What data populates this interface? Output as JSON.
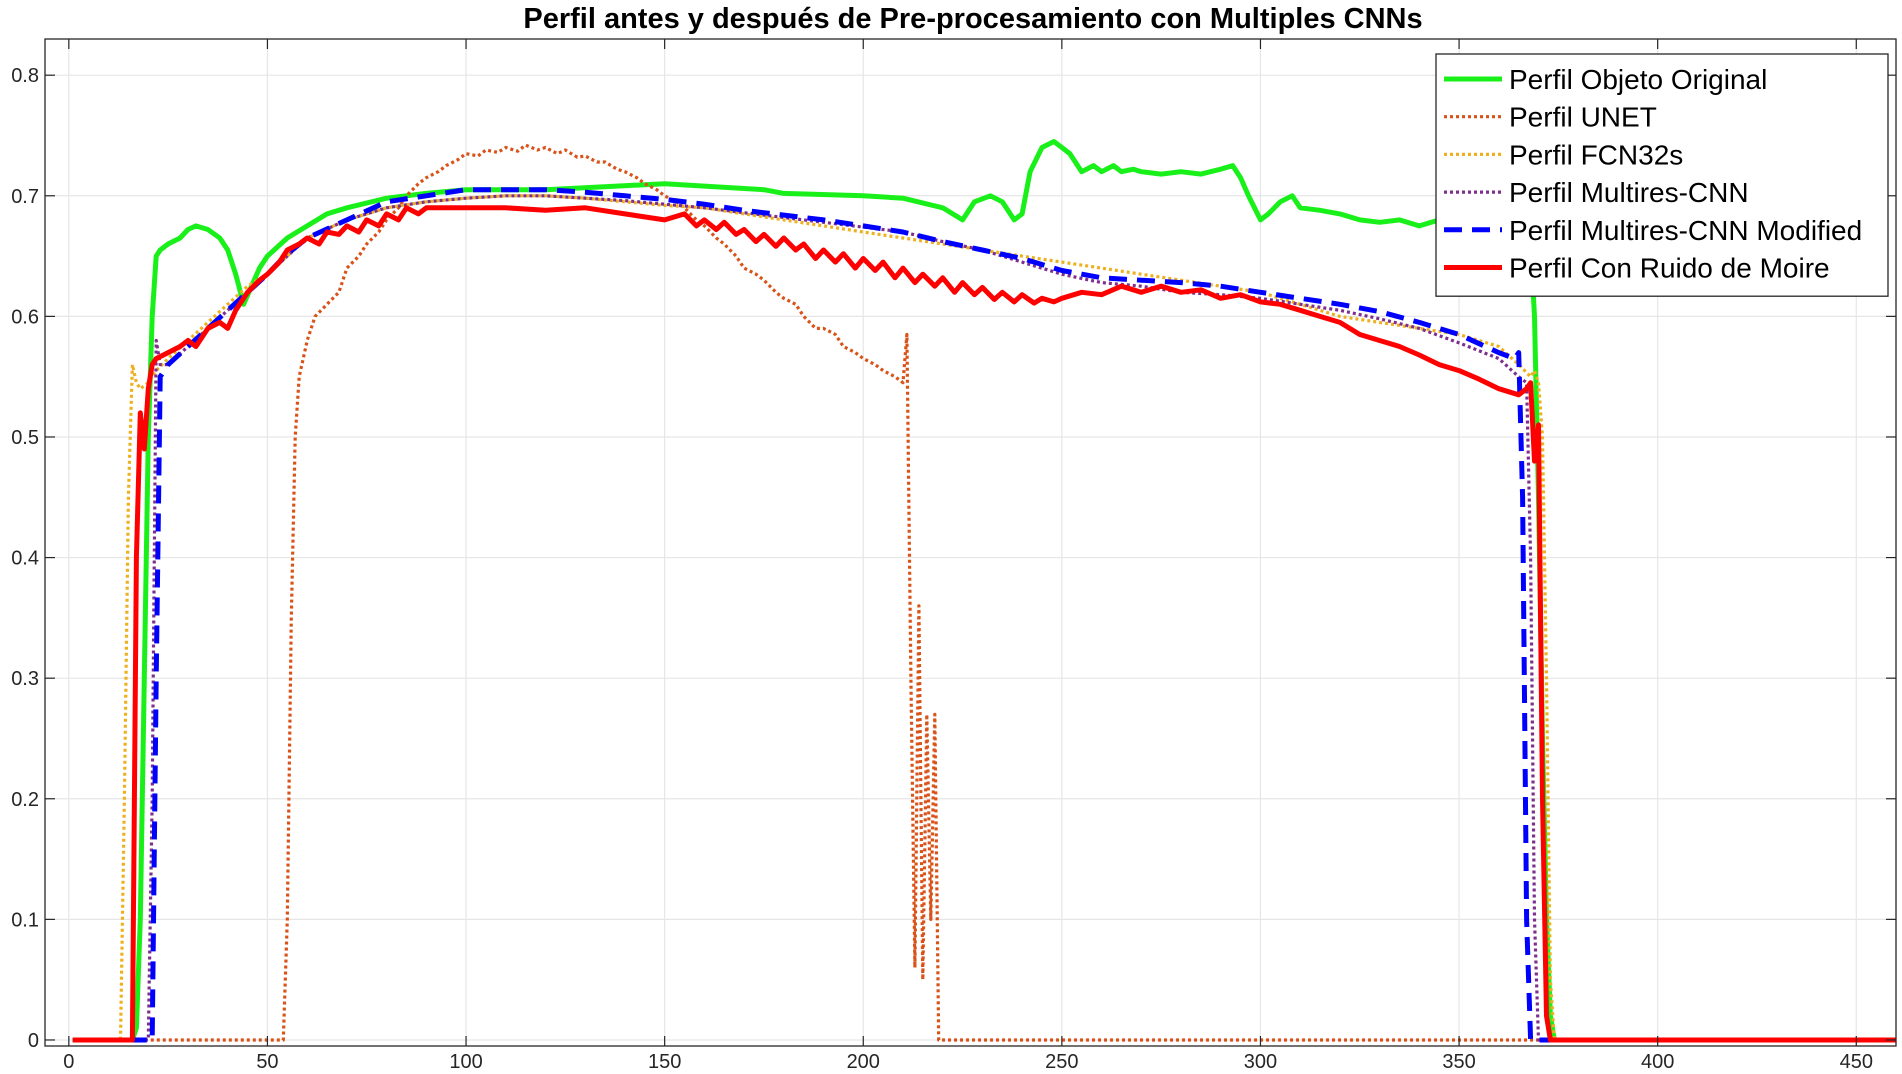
{
  "chart_data": {
    "type": "line",
    "title": "Perfil antes y después de Pre-procesamiento con Multiples CNNs",
    "xlabel": "",
    "ylabel": "",
    "xlim": [
      -6,
      460
    ],
    "ylim": [
      -0.005,
      0.83
    ],
    "xticks": [
      0,
      50,
      100,
      150,
      200,
      250,
      300,
      350,
      400,
      450
    ],
    "yticks": [
      0,
      0.1,
      0.2,
      0.3,
      0.4,
      0.5,
      0.6,
      0.7,
      0.8
    ],
    "xtick_labels": [
      "0",
      "50",
      "100",
      "150",
      "200",
      "250",
      "300",
      "350",
      "400",
      "450"
    ],
    "ytick_labels": [
      "0",
      "0.1",
      "0.2",
      "0.3",
      "0.4",
      "0.5",
      "0.6",
      "0.7",
      "0.8"
    ],
    "grid": true,
    "legend_position": "top-right",
    "series": [
      {
        "name": "Perfil Objeto Original",
        "color": "#19f01a",
        "style": "solid",
        "x": [
          1,
          16,
          17,
          18,
          19,
          20,
          21,
          22,
          23,
          25,
          28,
          30,
          32,
          35,
          38,
          40,
          42,
          44,
          46,
          48,
          50,
          55,
          60,
          65,
          70,
          80,
          90,
          100,
          120,
          150,
          175,
          180,
          200,
          210,
          220,
          225,
          228,
          232,
          235,
          238,
          240,
          242,
          245,
          248,
          250,
          252,
          255,
          258,
          260,
          263,
          265,
          268,
          270,
          275,
          280,
          285,
          290,
          293,
          295,
          297,
          300,
          302,
          305,
          308,
          310,
          315,
          320,
          325,
          330,
          335,
          340,
          345,
          350,
          355,
          360,
          365,
          368,
          369,
          370,
          371,
          372,
          373,
          374,
          375,
          400,
          460
        ],
        "y": [
          0.0,
          0.0,
          0.01,
          0.1,
          0.3,
          0.5,
          0.6,
          0.65,
          0.655,
          0.66,
          0.665,
          0.672,
          0.675,
          0.672,
          0.665,
          0.655,
          0.635,
          0.61,
          0.625,
          0.64,
          0.65,
          0.665,
          0.675,
          0.685,
          0.69,
          0.698,
          0.702,
          0.705,
          0.705,
          0.71,
          0.705,
          0.702,
          0.7,
          0.698,
          0.69,
          0.68,
          0.695,
          0.7,
          0.695,
          0.68,
          0.685,
          0.72,
          0.74,
          0.745,
          0.74,
          0.735,
          0.72,
          0.725,
          0.72,
          0.725,
          0.72,
          0.722,
          0.72,
          0.718,
          0.72,
          0.718,
          0.722,
          0.725,
          0.715,
          0.7,
          0.68,
          0.685,
          0.695,
          0.7,
          0.69,
          0.688,
          0.685,
          0.68,
          0.678,
          0.68,
          0.675,
          0.68,
          0.682,
          0.68,
          0.675,
          0.67,
          0.66,
          0.6,
          0.45,
          0.25,
          0.1,
          0.02,
          0.0,
          0.0,
          0.0,
          0.0
        ]
      },
      {
        "name": "Perfil UNET",
        "color": "#d95319",
        "style": "dotted",
        "x": [
          1,
          54,
          55,
          56,
          57,
          58,
          60,
          62,
          65,
          68,
          70,
          73,
          75,
          78,
          80,
          83,
          85,
          88,
          90,
          93,
          95,
          98,
          100,
          103,
          105,
          108,
          110,
          113,
          115,
          118,
          120,
          123,
          125,
          128,
          130,
          133,
          135,
          138,
          140,
          143,
          145,
          148,
          150,
          153,
          155,
          158,
          160,
          163,
          165,
          168,
          170,
          173,
          175,
          178,
          180,
          183,
          185,
          188,
          190,
          193,
          195,
          198,
          200,
          203,
          205,
          208,
          210,
          211,
          212,
          213,
          214,
          215,
          216,
          217,
          218,
          219,
          220,
          230,
          300,
          370,
          460
        ],
        "y": [
          0.0,
          0.0,
          0.1,
          0.35,
          0.5,
          0.55,
          0.58,
          0.6,
          0.61,
          0.62,
          0.64,
          0.65,
          0.66,
          0.67,
          0.68,
          0.69,
          0.7,
          0.71,
          0.715,
          0.72,
          0.725,
          0.73,
          0.735,
          0.733,
          0.738,
          0.736,
          0.74,
          0.737,
          0.742,
          0.738,
          0.74,
          0.735,
          0.738,
          0.732,
          0.733,
          0.728,
          0.728,
          0.722,
          0.72,
          0.715,
          0.71,
          0.705,
          0.7,
          0.695,
          0.69,
          0.68,
          0.675,
          0.665,
          0.66,
          0.65,
          0.64,
          0.635,
          0.63,
          0.62,
          0.615,
          0.61,
          0.6,
          0.59,
          0.59,
          0.585,
          0.575,
          0.57,
          0.565,
          0.56,
          0.555,
          0.55,
          0.545,
          0.585,
          0.3,
          0.06,
          0.36,
          0.05,
          0.27,
          0.1,
          0.27,
          0.0,
          0.0,
          0.0,
          0.0,
          0.0,
          0.0
        ]
      },
      {
        "name": "Perfil FCN32s",
        "color": "#edb120",
        "style": "dotted",
        "x": [
          1,
          13,
          14,
          15,
          16,
          17,
          18,
          20,
          22,
          25,
          30,
          35,
          40,
          45,
          50,
          55,
          60,
          70,
          80,
          90,
          100,
          110,
          120,
          130,
          140,
          150,
          160,
          170,
          180,
          190,
          200,
          210,
          220,
          230,
          240,
          250,
          260,
          270,
          280,
          290,
          300,
          310,
          320,
          330,
          340,
          350,
          360,
          365,
          368,
          369,
          370,
          371,
          372,
          373,
          374,
          400,
          460
        ],
        "y": [
          0.0,
          0.0,
          0.2,
          0.45,
          0.56,
          0.545,
          0.54,
          0.545,
          0.555,
          0.565,
          0.58,
          0.595,
          0.61,
          0.625,
          0.635,
          0.65,
          0.665,
          0.68,
          0.69,
          0.695,
          0.698,
          0.7,
          0.7,
          0.698,
          0.695,
          0.692,
          0.69,
          0.685,
          0.68,
          0.675,
          0.67,
          0.665,
          0.66,
          0.655,
          0.65,
          0.645,
          0.64,
          0.635,
          0.63,
          0.625,
          0.62,
          0.61,
          0.6,
          0.595,
          0.59,
          0.585,
          0.575,
          0.56,
          0.55,
          0.555,
          0.545,
          0.5,
          0.3,
          0.05,
          0.0,
          0.0,
          0.0
        ]
      },
      {
        "name": "Perfil Multires-CNN",
        "color": "#7e2f8e",
        "style": "dotted",
        "x": [
          1,
          20,
          21,
          22,
          23,
          25,
          30,
          35,
          40,
          45,
          50,
          55,
          60,
          70,
          80,
          90,
          100,
          110,
          120,
          130,
          140,
          150,
          160,
          170,
          180,
          190,
          200,
          210,
          220,
          230,
          240,
          250,
          260,
          270,
          280,
          290,
          300,
          310,
          320,
          330,
          340,
          350,
          360,
          365,
          367,
          368,
          369,
          370,
          400,
          460
        ],
        "y": [
          0.0,
          0.0,
          0.2,
          0.58,
          0.56,
          0.56,
          0.575,
          0.59,
          0.605,
          0.62,
          0.635,
          0.65,
          0.665,
          0.68,
          0.69,
          0.695,
          0.698,
          0.7,
          0.7,
          0.698,
          0.696,
          0.693,
          0.69,
          0.686,
          0.682,
          0.678,
          0.674,
          0.67,
          0.662,
          0.655,
          0.645,
          0.635,
          0.628,
          0.625,
          0.62,
          0.618,
          0.615,
          0.61,
          0.605,
          0.598,
          0.59,
          0.578,
          0.565,
          0.55,
          0.545,
          0.4,
          0.1,
          0.0,
          0.0,
          0.0
        ]
      },
      {
        "name": "Perfil Multires-CNN Modified",
        "color": "#0000ff",
        "style": "dashed",
        "x": [
          1,
          21,
          22,
          23,
          25,
          30,
          35,
          40,
          45,
          50,
          55,
          60,
          70,
          80,
          90,
          100,
          110,
          120,
          130,
          140,
          150,
          160,
          170,
          180,
          190,
          200,
          210,
          220,
          230,
          240,
          250,
          260,
          270,
          280,
          290,
          300,
          310,
          320,
          330,
          340,
          350,
          360,
          364,
          365,
          366,
          367,
          368,
          400,
          460
        ],
        "y": [
          0.0,
          0.0,
          0.3,
          0.55,
          0.56,
          0.575,
          0.59,
          0.605,
          0.62,
          0.635,
          0.652,
          0.665,
          0.68,
          0.695,
          0.7,
          0.705,
          0.705,
          0.705,
          0.703,
          0.7,
          0.697,
          0.693,
          0.688,
          0.684,
          0.68,
          0.675,
          0.67,
          0.662,
          0.655,
          0.648,
          0.638,
          0.632,
          0.63,
          0.628,
          0.625,
          0.62,
          0.615,
          0.61,
          0.604,
          0.595,
          0.585,
          0.57,
          0.565,
          0.57,
          0.45,
          0.1,
          0.0,
          0.0,
          0.0
        ]
      },
      {
        "name": "Perfil Con Ruido de Moire",
        "color": "#ff0000",
        "style": "solid",
        "x": [
          1,
          16,
          17,
          18,
          19,
          20,
          21,
          22,
          25,
          28,
          30,
          32,
          35,
          38,
          40,
          42,
          45,
          48,
          50,
          53,
          55,
          58,
          60,
          63,
          65,
          68,
          70,
          73,
          75,
          78,
          80,
          83,
          85,
          88,
          90,
          95,
          100,
          110,
          120,
          130,
          140,
          150,
          155,
          158,
          160,
          163,
          165,
          168,
          170,
          173,
          175,
          178,
          180,
          183,
          185,
          188,
          190,
          193,
          195,
          198,
          200,
          203,
          205,
          208,
          210,
          213,
          215,
          218,
          220,
          223,
          225,
          228,
          230,
          233,
          235,
          238,
          240,
          243,
          245,
          248,
          250,
          255,
          260,
          265,
          270,
          275,
          280,
          285,
          290,
          295,
          300,
          305,
          310,
          315,
          320,
          325,
          330,
          335,
          340,
          345,
          350,
          355,
          360,
          365,
          367,
          368,
          369,
          370,
          371,
          372,
          373,
          400,
          460
        ],
        "y": [
          0.0,
          0.0,
          0.4,
          0.52,
          0.49,
          0.54,
          0.56,
          0.565,
          0.57,
          0.575,
          0.58,
          0.575,
          0.59,
          0.595,
          0.59,
          0.605,
          0.62,
          0.63,
          0.635,
          0.645,
          0.655,
          0.66,
          0.665,
          0.66,
          0.67,
          0.668,
          0.675,
          0.67,
          0.68,
          0.675,
          0.685,
          0.68,
          0.69,
          0.685,
          0.69,
          0.69,
          0.69,
          0.69,
          0.688,
          0.69,
          0.685,
          0.68,
          0.685,
          0.675,
          0.68,
          0.672,
          0.678,
          0.668,
          0.672,
          0.662,
          0.668,
          0.658,
          0.665,
          0.655,
          0.66,
          0.648,
          0.655,
          0.645,
          0.652,
          0.64,
          0.648,
          0.638,
          0.645,
          0.632,
          0.64,
          0.628,
          0.635,
          0.625,
          0.632,
          0.62,
          0.628,
          0.618,
          0.624,
          0.614,
          0.62,
          0.612,
          0.618,
          0.611,
          0.615,
          0.612,
          0.615,
          0.62,
          0.618,
          0.625,
          0.62,
          0.625,
          0.62,
          0.622,
          0.615,
          0.618,
          0.612,
          0.61,
          0.605,
          0.6,
          0.595,
          0.585,
          0.58,
          0.575,
          0.568,
          0.56,
          0.555,
          0.548,
          0.54,
          0.535,
          0.54,
          0.545,
          0.48,
          0.51,
          0.2,
          0.02,
          0.0,
          0.0,
          0.0
        ]
      }
    ]
  }
}
